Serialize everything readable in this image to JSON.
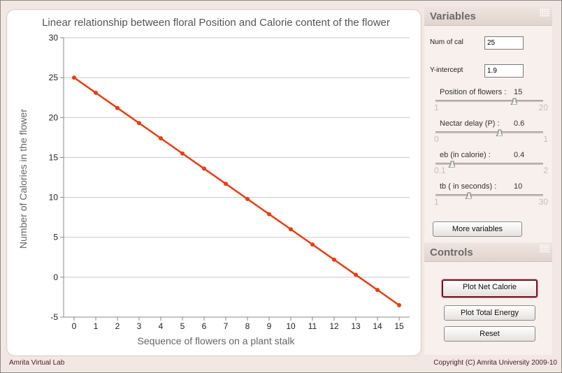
{
  "chart_data": {
    "type": "line",
    "title": "Linear relationship between floral Position and Calorie content of the flower",
    "xlabel": "Sequence of flowers on a plant stalk",
    "ylabel": "Number of Calories in the flower",
    "x": [
      0,
      1,
      2,
      3,
      4,
      5,
      6,
      7,
      8,
      9,
      10,
      11,
      12,
      13,
      14,
      15
    ],
    "series": [
      {
        "name": "",
        "color": "#f03a0c",
        "values": [
          25,
          23.1,
          21.2,
          19.3,
          17.4,
          15.5,
          13.6,
          11.7,
          9.8,
          7.9,
          6.0,
          4.1,
          2.2,
          0.3,
          -1.6,
          -3.5
        ]
      }
    ],
    "ylim": [
      -5,
      30
    ],
    "yticks": [
      -5,
      0,
      5,
      10,
      15,
      20,
      25,
      30
    ],
    "xticks": [
      0,
      1,
      2,
      3,
      4,
      5,
      6,
      7,
      8,
      9,
      10,
      11,
      12,
      13,
      14,
      15
    ],
    "grid": "horizontal"
  },
  "variables": {
    "title": "Variables",
    "num_cal_label": "Num of cal",
    "num_cal_value": "25",
    "y_intercept_label": "Y-intercept",
    "y_intercept_value": "1.9",
    "sliders": [
      {
        "label": "Position of flowers :",
        "value": "15",
        "min": "1",
        "max": "20",
        "level": 0.737
      },
      {
        "label": "Nectar delay (P) :",
        "value": "0.6",
        "min": "0",
        "max": "1",
        "level": 0.6
      },
      {
        "label": "eb (in calorie) :",
        "value": "0.4",
        "min": "0.1",
        "max": "2",
        "level": 0.158
      },
      {
        "label": "tb ( in seconds) :",
        "value": "10",
        "min": "1",
        "max": "30",
        "level": 0.31
      }
    ],
    "more_button": "More variables"
  },
  "controls": {
    "title": "Controls",
    "plot_net": "Plot Net Calorie",
    "plot_total": "Plot Total Energy",
    "reset": "Reset"
  },
  "footer": {
    "left": "Amrita Virtual Lab",
    "right": "Copyright (C) Amrita University 2009-10"
  }
}
